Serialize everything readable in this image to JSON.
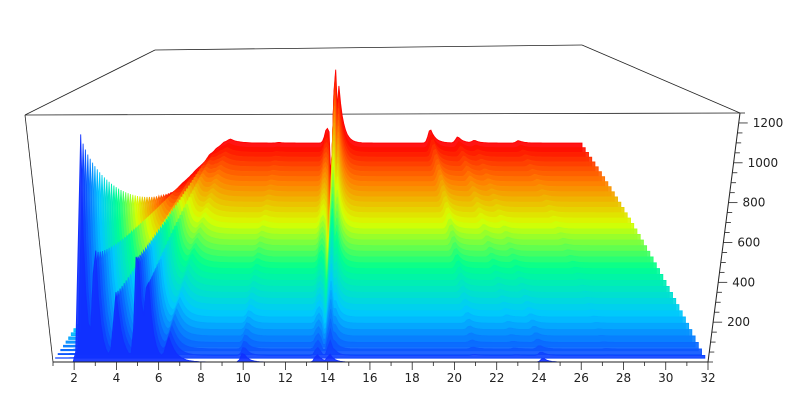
{
  "chart_data": {
    "type": "area",
    "style": "3d-waterfall",
    "title": "",
    "xlabel": "",
    "ylabel": "",
    "zlabel": "",
    "x_ticks": [
      "2",
      "4",
      "6",
      "8",
      "10",
      "12",
      "14",
      "16",
      "18",
      "20",
      "22",
      "24",
      "26",
      "28",
      "30",
      "32"
    ],
    "z_ticks": [
      "200",
      "400",
      "600",
      "800",
      "1000",
      "1200"
    ],
    "x_range": [
      1,
      32
    ],
    "z_range": [
      0,
      1250
    ],
    "grid": false,
    "legend": "none",
    "trace_count": 40,
    "color_gradient": [
      "#1030ff",
      "#00c8ff",
      "#00ff90",
      "#d8ff00",
      "#ff8000",
      "#ff0000"
    ],
    "peaks": [
      {
        "x": 2.3,
        "height_front": 1220,
        "height_back": 10,
        "width": 0.18
      },
      {
        "x": 3.0,
        "height_front": 600,
        "height_back": 5,
        "width": 0.2
      },
      {
        "x": 4.0,
        "height_front": 350,
        "height_back": 5,
        "width": 0.25
      },
      {
        "x": 5.0,
        "height_front": 620,
        "height_back": 20,
        "width": 0.22
      },
      {
        "x": 5.5,
        "height_front": 380,
        "height_back": 10,
        "width": 0.2
      },
      {
        "x": 6.5,
        "height_front": 120,
        "height_back": 30,
        "width": 0.3
      },
      {
        "x": 10.0,
        "height_front": 50,
        "height_back": 5,
        "width": 0.2
      },
      {
        "x": 13.5,
        "height_front": 40,
        "height_back": 120,
        "width": 0.2
      },
      {
        "x": 14.1,
        "height_front": 40,
        "height_back": 960,
        "width": 0.18
      },
      {
        "x": 21.0,
        "height_front": 0,
        "height_back": 110,
        "width": 0.2
      },
      {
        "x": 23.0,
        "height_front": 0,
        "height_back": 50,
        "width": 0.2
      },
      {
        "x": 24.2,
        "height_front": 20,
        "height_back": 20,
        "width": 0.2
      },
      {
        "x": 27.4,
        "height_front": 0,
        "height_back": 20,
        "width": 0.2
      }
    ]
  }
}
